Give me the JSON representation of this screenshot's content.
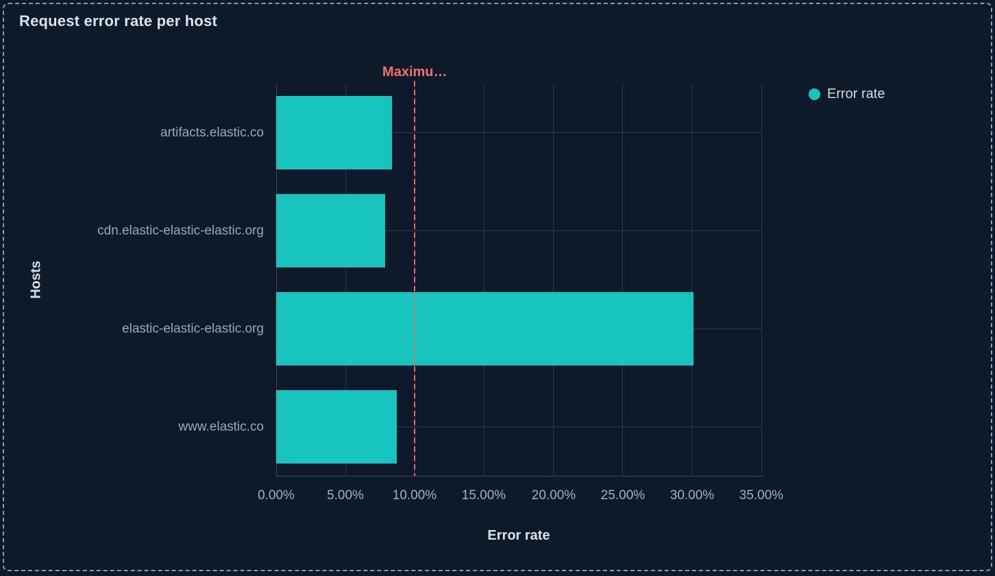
{
  "panel": {
    "title": "Request error rate per host"
  },
  "legend": {
    "items": [
      {
        "label": "Error rate",
        "color": "#18c4be"
      }
    ]
  },
  "chart_data": {
    "type": "bar",
    "orientation": "horizontal",
    "title": "Request error rate per host",
    "categories": [
      "artifacts.elastic.co",
      "cdn.elastic-elastic-elastic.org",
      "elastic-elastic-elastic.org",
      "www.elastic.co"
    ],
    "series": [
      {
        "name": "Error rate",
        "values": [
          8.35,
          7.86,
          30.1,
          8.7
        ],
        "color": "#18c4be"
      }
    ],
    "value_axis": {
      "label": "Error rate",
      "unit": "%",
      "min": 0,
      "max": 35,
      "tick_step": 5,
      "tick_labels": [
        "0.00%",
        "5.00%",
        "10.00%",
        "15.00%",
        "20.00%",
        "25.00%",
        "30.00%",
        "35.00%"
      ]
    },
    "category_axis": {
      "label": "Hosts"
    },
    "threshold": {
      "label": "Maximu…",
      "value": 10,
      "color": "#ee6866"
    },
    "grid": true,
    "legend_position": "top-right",
    "colors": {
      "background": "#0e1929",
      "bar": "#18c4be",
      "threshold": "#ee6866",
      "gridline": "#2c3950",
      "axis_line": "#3d4962",
      "panel_border": "#8b99b3",
      "title_text": "#dce2ed",
      "tick_text": "#a6b0c3",
      "category_text": "#9ca7bb"
    }
  }
}
